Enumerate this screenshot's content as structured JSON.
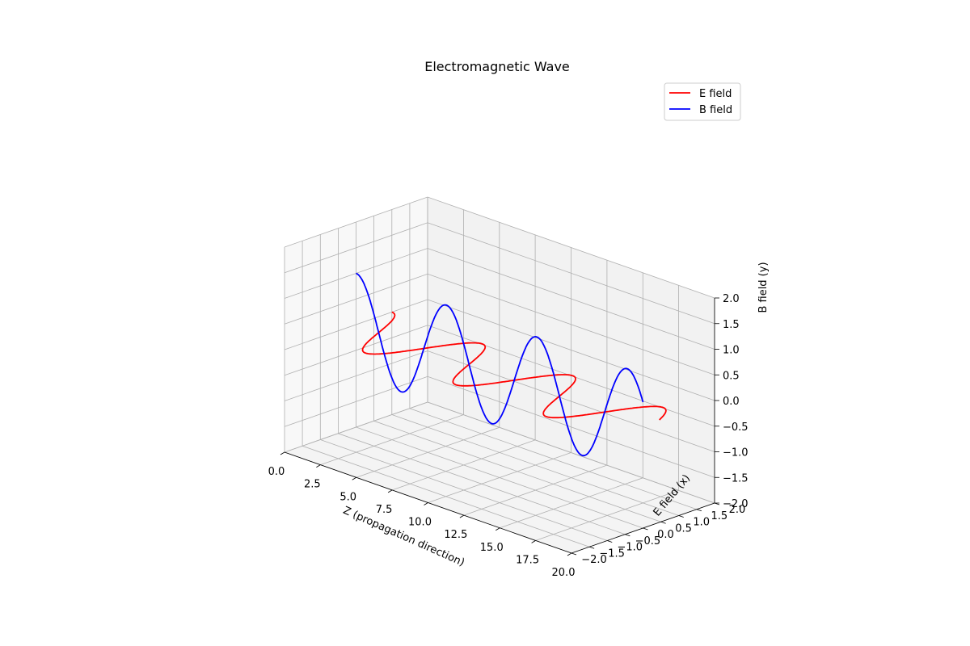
{
  "chart_data": {
    "type": "line3d",
    "title": "Electromagnetic Wave",
    "xlabel": "Z (propagation direction)",
    "ylabel": "E field (x)",
    "zlabel": "B field (y)",
    "xlim": [
      0,
      20
    ],
    "ylim": [
      -2,
      2
    ],
    "zlim": [
      -2,
      2
    ],
    "xticks": [
      "0.0",
      "2.5",
      "5.0",
      "7.5",
      "10.0",
      "12.5",
      "15.0",
      "17.5",
      "20.0"
    ],
    "yticks": [
      "−2.0",
      "−1.5",
      "−1.0",
      "−0.5",
      "0.0",
      "0.5",
      "1.0",
      "1.5",
      "2.0"
    ],
    "zticks": [
      "−2.0",
      "−1.5",
      "−1.0",
      "−0.5",
      "0.0",
      "0.5",
      "1.0",
      "1.5",
      "2.0"
    ],
    "grid": true,
    "legend": "top-right",
    "series": [
      {
        "name": "E field",
        "color": "#ff0000",
        "description_plane": "oscillates along E field (x) axis, B field (y) = 0",
        "amplitude": 1,
        "wavelength": 6.3,
        "z_range": [
          0,
          20
        ]
      },
      {
        "name": "B field",
        "color": "#0000ff",
        "description_plane": "oscillates along B field (y) axis, E field (x) = 0",
        "amplitude": 1,
        "wavelength": 6.3,
        "z_range": [
          0,
          20
        ]
      }
    ]
  }
}
